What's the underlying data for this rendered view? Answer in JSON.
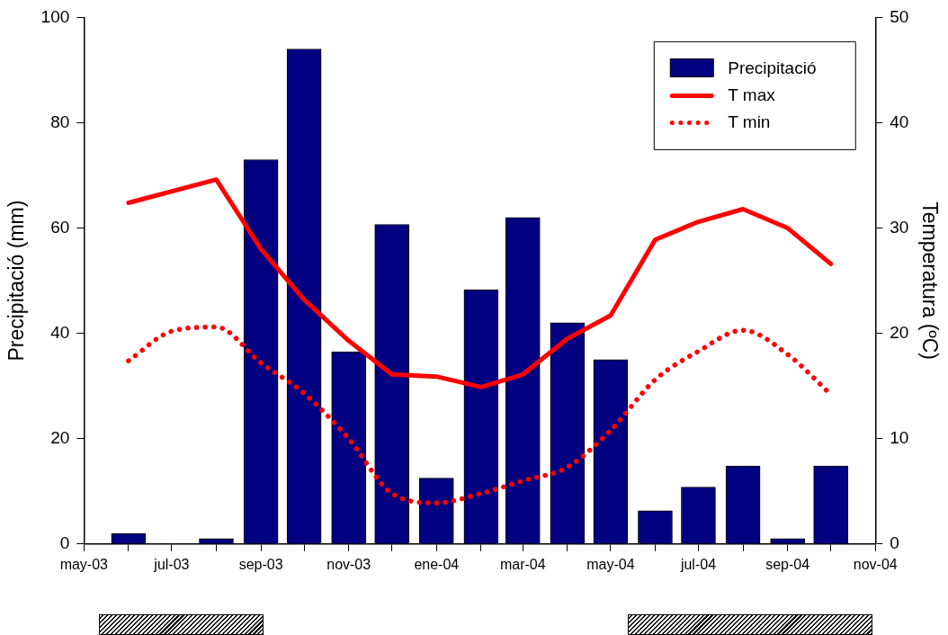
{
  "chart_data": {
    "type": "bar",
    "ylabel": "Precipitació (mm)",
    "y2label": "Temperatura (ºC)",
    "x": [
      "2003-06",
      "2003-07",
      "2003-08",
      "2003-09",
      "2003-10",
      "2003-11",
      "2003-12",
      "2004-01",
      "2004-02",
      "2004-03",
      "2004-04",
      "2004-05",
      "2004-06",
      "2004-07",
      "2004-08",
      "2004-09",
      "2004-10"
    ],
    "xlim": [
      "2003-05",
      "2004-11"
    ],
    "xticks": [
      {
        "value": "2003-05",
        "label": "may-03"
      },
      {
        "value": "2003-06",
        "label": null
      },
      {
        "value": "2003-07",
        "label": "jul-03"
      },
      {
        "value": "2003-08",
        "label": null
      },
      {
        "value": "2003-09",
        "label": "sep-03"
      },
      {
        "value": "2003-10",
        "label": null
      },
      {
        "value": "2003-11",
        "label": "nov-03"
      },
      {
        "value": "2003-12",
        "label": null
      },
      {
        "value": "2004-01",
        "label": "ene-04"
      },
      {
        "value": "2004-02",
        "label": null
      },
      {
        "value": "2004-03",
        "label": "mar-04"
      },
      {
        "value": "2004-04",
        "label": null
      },
      {
        "value": "2004-05",
        "label": "may-04"
      },
      {
        "value": "2004-06",
        "label": null
      },
      {
        "value": "2004-07",
        "label": "jul-04"
      },
      {
        "value": "2004-08",
        "label": null
      },
      {
        "value": "2004-09",
        "label": "sep-04"
      },
      {
        "value": "2004-10",
        "label": null
      },
      {
        "value": "2004-11",
        "label": "nov-04"
      }
    ],
    "ylim": [
      0,
      100
    ],
    "yticks": [
      0,
      20,
      40,
      60,
      80,
      100
    ],
    "y2lim": [
      0,
      50
    ],
    "y2ticks": [
      0,
      10,
      20,
      30,
      40,
      50
    ],
    "legend": "top right",
    "grid": false,
    "series": [
      {
        "name": "Precipitació",
        "color": "#000080",
        "values": [
          2,
          0,
          1,
          73,
          94,
          36.5,
          60.7,
          12.5,
          48.3,
          62,
          42,
          35,
          6.3,
          10.8,
          14.8,
          1,
          14.8
        ]
      },
      {
        "name": "T max",
        "type": "line",
        "axis": "y2",
        "color": "#ff0000",
        "line_style": "solid",
        "x": [
          "2003-06",
          "2003-08",
          "2003-09",
          "2003-10",
          "2003-11",
          "2003-12",
          "2004-01",
          "2004-02",
          "2004-03",
          "2004-04",
          "2004-05",
          "2004-06",
          "2004-07",
          "2004-08",
          "2004-09",
          "2004-10"
        ],
        "values": [
          32.4,
          34.6,
          28,
          23.2,
          19.3,
          16.1,
          15.9,
          14.9,
          16.1,
          19.5,
          21.7,
          28.9,
          30.6,
          31.8,
          30,
          26.6
        ]
      },
      {
        "name": "T min",
        "type": "line",
        "axis": "y2",
        "color": "#ff0000",
        "line_style": "dotted",
        "values": [
          17.4,
          20.2,
          20.6,
          17.2,
          14.3,
          10,
          4.8,
          3.9,
          4.8,
          6,
          7.3,
          10.8,
          15.6,
          18.3,
          20.3,
          18,
          14.2
        ]
      }
    ]
  }
}
